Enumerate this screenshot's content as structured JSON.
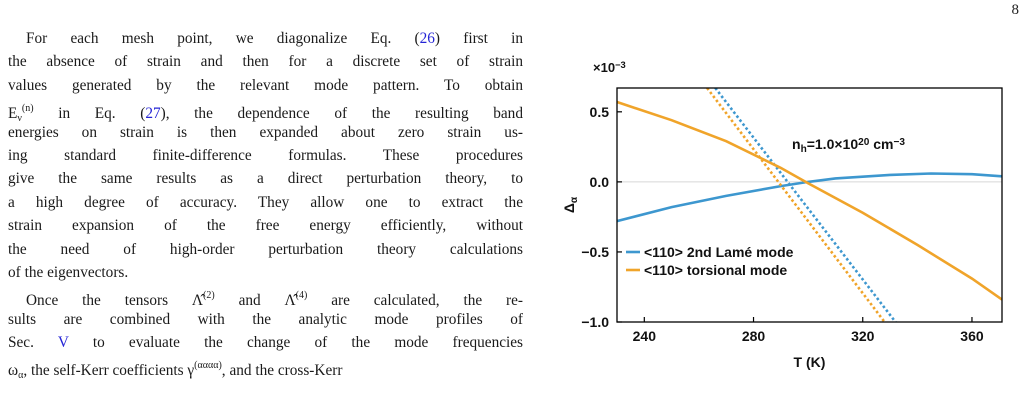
{
  "page_number": "8",
  "paragraphs": [
    [
      [
        {
          "text": "For each mesh point, we diagonalize Eq. ("
        },
        {
          "link": "26"
        },
        {
          "text": ") first in"
        }
      ],
      [
        {
          "text": "the absence of strain and then for a discrete set of strain"
        }
      ],
      [
        {
          "text": "values generated by the relevant mode pattern. To obtain"
        }
      ],
      [
        {
          "text": "E"
        },
        {
          "sub": "ν"
        },
        {
          "sup": "(n)"
        },
        {
          "text": " in Eq. ("
        },
        {
          "link": "27"
        },
        {
          "text": "), the dependence of the resulting band"
        }
      ],
      [
        {
          "text": "energies on strain is then expanded about zero strain us-"
        }
      ],
      [
        {
          "text": "ing standard finite-difference formulas. These procedures"
        }
      ],
      [
        {
          "text": "give the same results as a direct perturbation theory, to"
        }
      ],
      [
        {
          "text": "a high degree of accuracy. They allow one to extract the"
        }
      ],
      [
        {
          "text": "strain expansion of the free energy efficiently, without"
        }
      ],
      [
        {
          "text": "the need of high-order perturbation theory calculations"
        }
      ],
      [
        {
          "text": "of the eigenvectors."
        }
      ]
    ],
    [
      [
        {
          "text": "Once the tensors Λ̂"
        },
        {
          "sup": "(2)"
        },
        {
          "text": " and Λ̂"
        },
        {
          "sup": "(4)"
        },
        {
          "text": " are calculated, the re-"
        }
      ],
      [
        {
          "text": "sults are combined with the analytic mode profiles of"
        }
      ],
      [
        {
          "text": "Sec. "
        },
        {
          "link": "V"
        },
        {
          "text": " to evaluate the change of the mode frequencies"
        }
      ],
      [
        {
          "text": "ω"
        },
        {
          "sub": "α"
        },
        {
          "text": ", the self-Kerr coefficients γ"
        },
        {
          "sup": "(αααα)"
        },
        {
          "text": ", and the cross-Kerr"
        }
      ]
    ]
  ],
  "chart_data": {
    "type": "line",
    "multiplier": [
      {
        "text": "×10"
      },
      {
        "sup": "−3"
      }
    ],
    "ylabel": [
      {
        "text": "Δ"
      },
      {
        "sub": "α"
      }
    ],
    "xlabel": "T (K)",
    "annotation": [
      {
        "text": "n"
      },
      {
        "sub": "h"
      },
      {
        "text": "=1.0×10"
      },
      {
        "sup": "20"
      },
      {
        "text": " cm"
      },
      {
        "sup": "−3"
      }
    ],
    "xlim": [
      230,
      371
    ],
    "ylim": [
      -1.0,
      0.67
    ],
    "xticks": [
      240,
      280,
      320,
      360
    ],
    "yticks": [
      0.5,
      {
        "value": 0,
        "label": "0.0"
      },
      {
        "value": -0.5,
        "label": "−0.5"
      },
      {
        "value": -1.0,
        "label": "−1.0"
      }
    ],
    "zero_line": true,
    "legend": "lower left",
    "series": [
      {
        "name": "<110> 2nd Lamé mode",
        "color": "#3d97cf",
        "x": [
          230,
          250,
          270,
          290,
          300,
          310,
          330,
          345,
          360,
          371
        ],
        "values": [
          -0.28,
          -0.18,
          -0.1,
          -0.03,
          0.0,
          0.025,
          0.05,
          0.06,
          0.055,
          0.04
        ],
        "dotted": {
          "x": [
            266,
            332
          ],
          "values": [
            0.67,
            -1.0
          ]
        }
      },
      {
        "name": "<110> torsional mode",
        "color": "#f0a42a",
        "x": [
          230,
          250,
          270,
          290,
          300,
          320,
          340,
          360,
          371
        ],
        "values": [
          0.57,
          0.44,
          0.29,
          0.1,
          -0.01,
          -0.22,
          -0.45,
          -0.69,
          -0.84
        ],
        "dotted": {
          "x": [
            263,
            328
          ],
          "values": [
            0.67,
            -1.0
          ]
        }
      }
    ]
  }
}
